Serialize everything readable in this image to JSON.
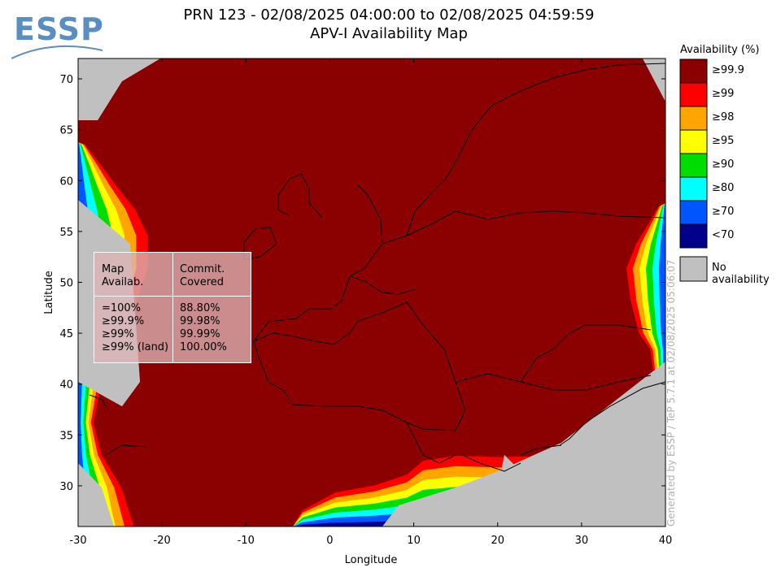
{
  "title_line1": "PRN 123 - 02/08/2025 04:00:00 to 02/08/2025 04:59:59",
  "title_line2": "APV-I Availability Map",
  "logo": "ESSP",
  "generated_by": "Generated by ESSP / TeP 5.7.1 at 02/08/2025 05:06:07",
  "axes": {
    "xlabel": "Longitude",
    "ylabel": "Latitude",
    "xlim": [
      -30,
      40
    ],
    "ylim": [
      26,
      72
    ],
    "xticks": [
      "-30",
      "-20",
      "-10",
      "0",
      "10",
      "20",
      "30",
      "40"
    ],
    "yticks": [
      "30",
      "35",
      "40",
      "45",
      "50",
      "55",
      "60",
      "65",
      "70"
    ]
  },
  "legend": {
    "title": "Availability (%)",
    "items": [
      {
        "label": "≥99.9",
        "color": "#8b0000"
      },
      {
        "label": "≥99",
        "color": "#ff0000"
      },
      {
        "label": "≥98",
        "color": "#ffa500"
      },
      {
        "label": "≥95",
        "color": "#ffff00"
      },
      {
        "label": "≥90",
        "color": "#00dd00"
      },
      {
        "label": "≥80",
        "color": "#00ffff"
      },
      {
        "label": "≥70",
        "color": "#0055ff"
      },
      {
        "label": "<70",
        "color": "#00008b"
      }
    ],
    "no_availability": {
      "label": "No availability",
      "color": "#c0c0c0"
    }
  },
  "stats": {
    "header_col1": "Map\nAvailab.",
    "header_col2": "Commit.\nCovered",
    "rows_col1": "=100%\n≥99.9%\n≥99%\n≥99% (land)",
    "rows_col2": "88.80%\n99.98%\n99.99%\n100.00%"
  },
  "chart_data": {
    "type": "heatmap",
    "title": "PRN 123 - 02/08/2025 04:00:00 to 02/08/2025 04:59:59 APV-I Availability Map",
    "xlabel": "Longitude",
    "ylabel": "Latitude",
    "xlim": [
      -30,
      40
    ],
    "ylim": [
      26,
      72
    ],
    "dominant_value": "≥99.9",
    "edge_degradation": [
      "west Atlantic edge",
      "south Africa/Mediterranean edge",
      "east edge"
    ],
    "commitment_coverage": [
      {
        "map_availability": "=100%",
        "covered": "88.80%"
      },
      {
        "map_availability": "≥99.9%",
        "covered": "99.98%"
      },
      {
        "map_availability": "≥99%",
        "covered": "99.99%"
      },
      {
        "map_availability": "≥99% (land)",
        "covered": "100.00%"
      }
    ]
  }
}
